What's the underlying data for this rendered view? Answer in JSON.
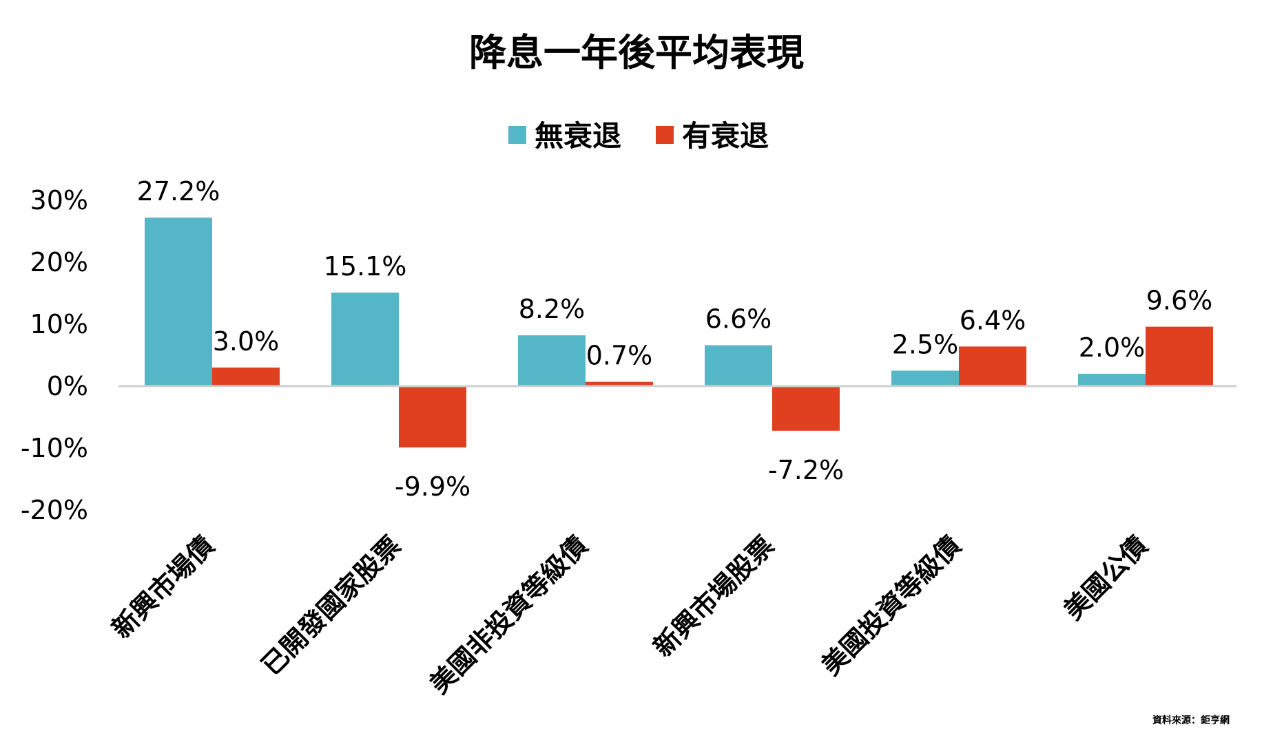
{
  "chart_data": {
    "type": "bar",
    "title": "降息一年後平均表現",
    "categories": [
      "新興市場債",
      "已開發國家股票",
      "美國非投資等級債",
      "新興市場股票",
      "美國投資等級債",
      "美國公債"
    ],
    "series": [
      {
        "name": "無衰退",
        "color": "#55b6c8",
        "values": [
          27.2,
          15.1,
          8.2,
          6.6,
          2.5,
          2.0
        ]
      },
      {
        "name": "有衰退",
        "color": "#e04020",
        "values": [
          3.0,
          -9.9,
          0.7,
          -7.2,
          6.4,
          9.6
        ]
      }
    ],
    "data_labels": [
      [
        "27.2%",
        "15.1%",
        "8.2%",
        "6.6%",
        "2.5%",
        "2.0%"
      ],
      [
        "3.0%",
        "-9.9%",
        "0.7%",
        "-7.2%",
        "6.4%",
        "9.6%"
      ]
    ],
    "ylim": [
      -20,
      30
    ],
    "yticks": [
      30,
      20,
      10,
      0,
      -10,
      -20
    ],
    "ytick_labels": [
      "30%",
      "20%",
      "10%",
      "0%",
      "-10%",
      "-20%"
    ],
    "xlabel": "",
    "ylabel": "",
    "legend_position": "top-center",
    "grid": false,
    "source_note": "資料來源：鉅亨網"
  }
}
